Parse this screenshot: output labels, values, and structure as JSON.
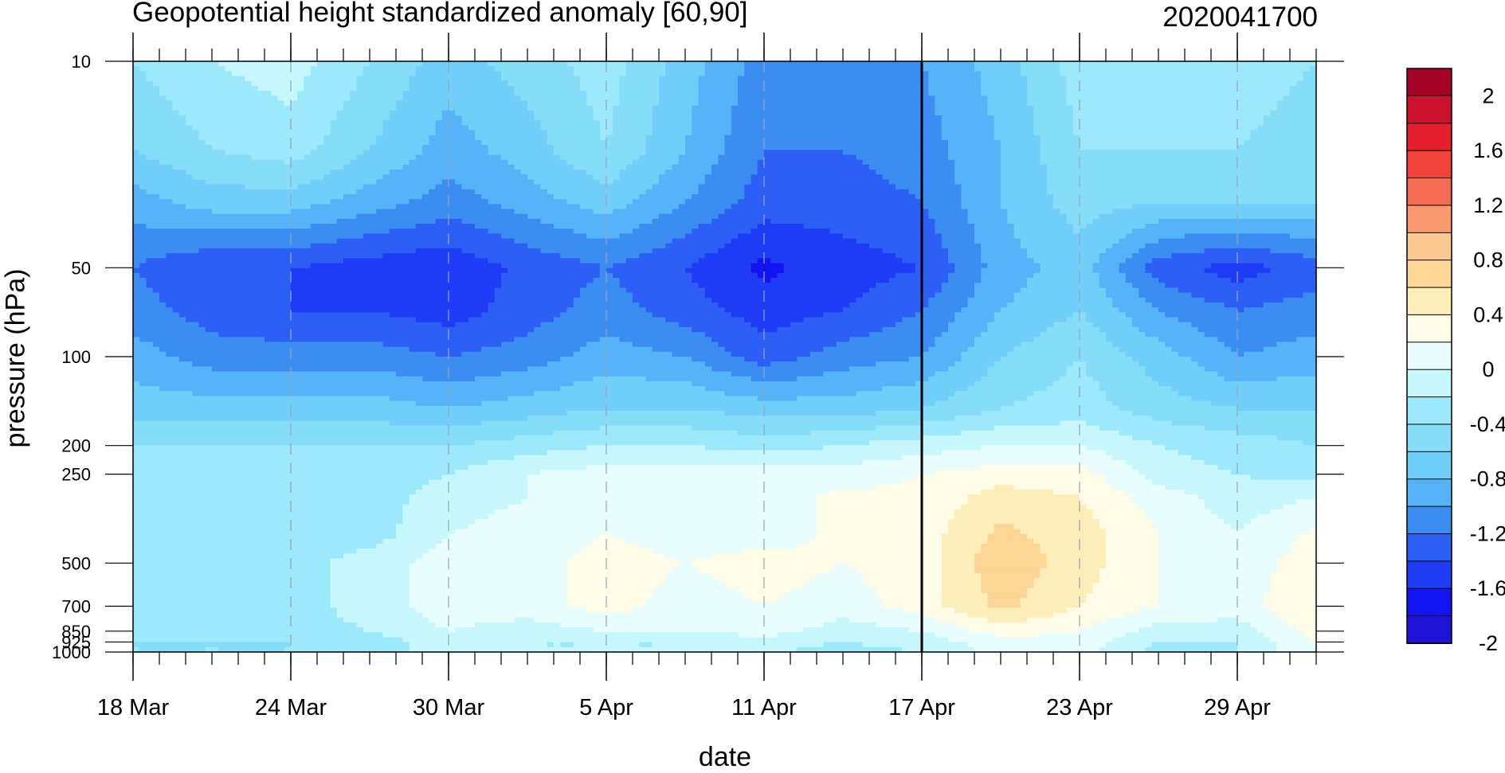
{
  "figure": {
    "title_left": "Geopotential height standardized anomaly [60,90]",
    "title_right": "2020041700"
  },
  "chart_data": {
    "type": "heatmap",
    "subtype": "filled-contour",
    "xlabel": "date",
    "ylabel": "pressure (hPa)",
    "x_ticks": [
      "18 Mar",
      "24 Mar",
      "30 Mar",
      "5 Apr",
      "11 Apr",
      "17 Apr",
      "23 Apr",
      "29 Apr"
    ],
    "x_range": [
      "18 Mar",
      "02 May"
    ],
    "y_scale": "log",
    "y_reversed": true,
    "y_range": [
      10,
      1000
    ],
    "y_ticks": [
      10,
      50,
      100,
      200,
      250,
      500,
      700,
      850,
      925,
      1000
    ],
    "y_tick_labels": [
      "10",
      "50",
      "100",
      "200",
      "250",
      "500",
      "700",
      "850",
      "925",
      "1000"
    ],
    "dates": [
      "18 Mar",
      "21 Mar",
      "24 Mar",
      "27 Mar",
      "30 Mar",
      "2 Apr",
      "5 Apr",
      "8 Apr",
      "11 Apr",
      "14 Apr",
      "17 Apr",
      "20 Apr",
      "23 Apr",
      "26 Apr",
      "29 Apr",
      "2 May"
    ],
    "levels": [
      10,
      20,
      30,
      50,
      70,
      100,
      150,
      200,
      250,
      300,
      400,
      500,
      700,
      850,
      925,
      1000
    ],
    "values": [
      [
        -0.6,
        -0.4,
        -0.3,
        -0.6,
        -0.9,
        -0.7,
        -0.5,
        -0.9,
        -1.3,
        -1.3,
        -1.2,
        -0.9,
        -0.5,
        -0.5,
        -0.5,
        -0.6
      ],
      [
        -0.8,
        -0.6,
        -0.5,
        -0.8,
        -1.1,
        -0.9,
        -0.6,
        -1.0,
        -1.4,
        -1.4,
        -1.3,
        -1.0,
        -0.6,
        -0.6,
        -0.6,
        -0.7
      ],
      [
        -1.1,
        -0.9,
        -0.9,
        -1.1,
        -1.3,
        -1.1,
        -0.9,
        -1.2,
        -1.5,
        -1.5,
        -1.4,
        -1.0,
        -0.7,
        -0.8,
        -0.8,
        -0.8
      ],
      [
        -1.4,
        -1.6,
        -1.6,
        -1.7,
        -1.75,
        -1.55,
        -1.4,
        -1.6,
        -1.85,
        -1.7,
        -1.6,
        -1.1,
        -0.9,
        -1.5,
        -1.7,
        -1.5
      ],
      [
        -1.3,
        -1.5,
        -1.6,
        -1.6,
        -1.7,
        -1.5,
        -1.3,
        -1.5,
        -1.7,
        -1.6,
        -1.4,
        -1.0,
        -0.8,
        -1.2,
        -1.4,
        -1.3
      ],
      [
        -1.1,
        -1.3,
        -1.3,
        -1.3,
        -1.4,
        -1.3,
        -1.1,
        -1.2,
        -1.5,
        -1.3,
        -1.2,
        -0.8,
        -0.6,
        -0.9,
        -1.2,
        -1.1
      ],
      [
        -0.9,
        -0.9,
        -0.9,
        -0.9,
        -1.0,
        -0.9,
        -0.8,
        -0.8,
        -0.9,
        -0.9,
        -0.8,
        -0.6,
        -0.5,
        -0.7,
        -0.8,
        -0.8
      ],
      [
        -0.6,
        -0.6,
        -0.6,
        -0.6,
        -0.6,
        -0.5,
        -0.4,
        -0.4,
        -0.5,
        -0.4,
        -0.3,
        -0.2,
        -0.2,
        -0.4,
        -0.5,
        -0.6
      ],
      [
        -0.5,
        -0.55,
        -0.5,
        -0.5,
        -0.4,
        -0.2,
        -0.1,
        -0.1,
        -0.1,
        -0.1,
        0.0,
        0.1,
        0.1,
        -0.3,
        -0.4,
        -0.5
      ],
      [
        -0.5,
        -0.5,
        -0.5,
        -0.5,
        -0.3,
        -0.2,
        -0.1,
        -0.1,
        -0.1,
        0.05,
        0.05,
        0.3,
        0.2,
        -0.1,
        -0.3,
        -0.2
      ],
      [
        -0.5,
        -0.5,
        -0.5,
        -0.5,
        -0.2,
        -0.1,
        0.0,
        -0.1,
        -0.1,
        0.05,
        0.1,
        0.45,
        0.3,
        0.0,
        -0.2,
        0.05
      ],
      [
        -0.5,
        -0.5,
        -0.5,
        -0.3,
        -0.1,
        -0.1,
        0.1,
        0.0,
        0.1,
        0.0,
        0.1,
        0.55,
        0.3,
        0.0,
        -0.1,
        0.1
      ],
      [
        -0.5,
        -0.5,
        -0.5,
        -0.3,
        -0.1,
        -0.1,
        0.1,
        -0.1,
        0.0,
        -0.1,
        0.1,
        0.45,
        0.2,
        0.0,
        -0.1,
        0.2
      ],
      [
        -0.5,
        -0.5,
        -0.5,
        -0.4,
        -0.2,
        -0.3,
        -0.2,
        -0.2,
        -0.1,
        -0.3,
        -0.2,
        0.1,
        0.0,
        -0.3,
        -0.3,
        0.1
      ],
      [
        -0.6,
        -0.6,
        -0.6,
        -0.5,
        -0.3,
        -0.4,
        -0.4,
        -0.4,
        -0.3,
        -0.4,
        -0.3,
        -0.1,
        -0.1,
        -0.4,
        -0.4,
        0.0
      ],
      [
        -0.6,
        -0.6,
        -0.6,
        -0.5,
        -0.3,
        -0.4,
        -0.4,
        -0.4,
        -0.35,
        -0.5,
        -0.4,
        -0.1,
        -0.1,
        -0.5,
        -0.4,
        0.0
      ]
    ],
    "verification_line": "17 Apr",
    "colorbar": {
      "labels": [
        "2",
        "1.6",
        "1.2",
        "0.8",
        "0.4",
        "0",
        "-0.4",
        "-0.8",
        "-1.2",
        "-1.6",
        "-2"
      ],
      "colors": [
        "#a50026",
        "#cd1230",
        "#e51f2c",
        "#f2433a",
        "#f56a52",
        "#f99a6e",
        "#fbc892",
        "#fbd694",
        "#fdedb8",
        "#fefbe6",
        "#e8fdfd",
        "#c5f7fc",
        "#9ce9fb",
        "#85ddf8",
        "#70cef8",
        "#57b3f7",
        "#3b8df2",
        "#2c5ff5",
        "#1e3cf5",
        "#1414f2",
        "#1e14d8"
      ]
    }
  }
}
